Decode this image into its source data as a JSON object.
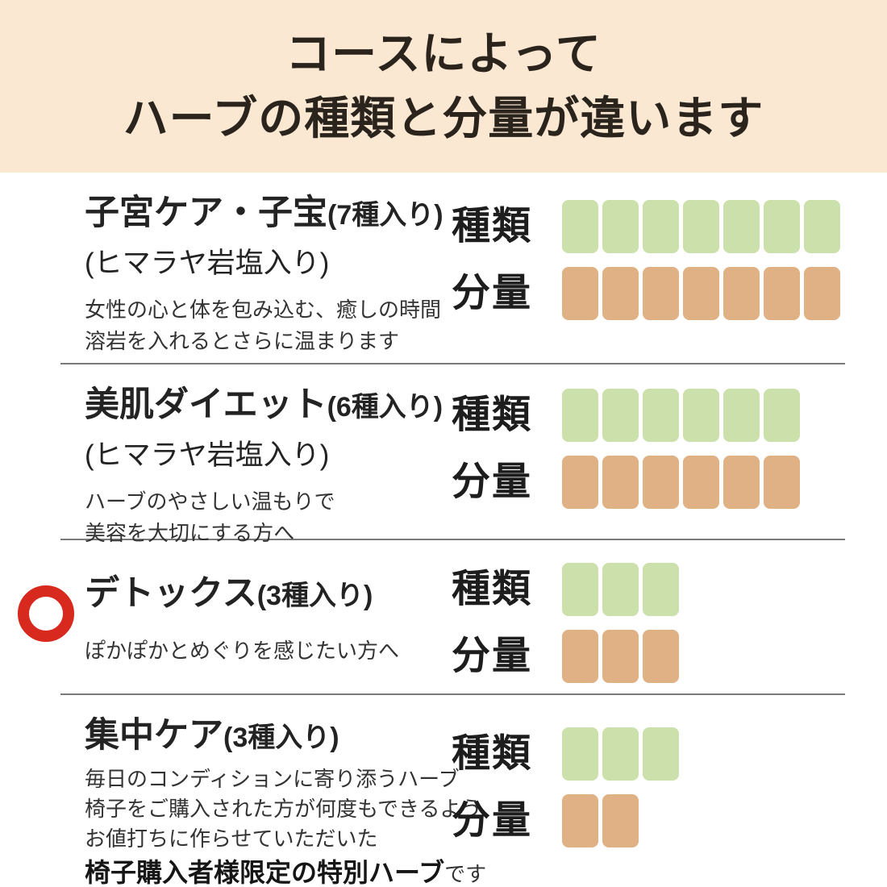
{
  "header": {
    "title_line1": "コースによって",
    "title_line2": "ハーブの種類と分量が違います"
  },
  "labels": {
    "types": "種類",
    "amount": "分量"
  },
  "colors": {
    "header_bg": "#FAE8D3",
    "green_square": "#CBE0AA",
    "orange_square": "#E0B184",
    "marker_red": "#D7291D",
    "divider": "#7A7A7A",
    "ink": "#2B241D"
  },
  "sections": [
    {
      "title": "子宮ケア・子宝",
      "title_suffix": "(7種入り)",
      "subtitle": "(ヒマラヤ岩塩入り)",
      "description_lines": [
        "女性の心と体を包み込む、癒しの時間",
        "溶岩を入れるとさらに温まります"
      ],
      "types_count": 7,
      "amount_count": 7,
      "marked": false
    },
    {
      "title": "美肌ダイエット",
      "title_suffix": "(6種入り)",
      "subtitle": "(ヒマラヤ岩塩入り)",
      "description_lines": [
        "ハーブのやさしい温もりで",
        "美容を大切にする方へ"
      ],
      "types_count": 6,
      "amount_count": 6,
      "marked": false
    },
    {
      "title": "デトックス",
      "title_suffix": "(3種入り)",
      "subtitle": "",
      "description_lines": [
        "ぽかぽかとめぐりを感じたい方へ"
      ],
      "types_count": 3,
      "amount_count": 3,
      "marked": true
    },
    {
      "title": "集中ケア",
      "title_suffix": "(3種入り)",
      "subtitle": "",
      "description_lines": [
        "毎日のコンディションに寄り添うハーブ",
        "椅子をご購入された方が何度もできるよう",
        "お値打ちに作らせていただいた"
      ],
      "emphasis": "椅子購入者様限定の特別ハーブ",
      "emphasis_suffix": "です",
      "types_count": 3,
      "amount_count": 2,
      "marked": false
    }
  ],
  "chart_data": {
    "type": "bar",
    "categories": [
      "子宮ケア・子宝(7種入り)",
      "美肌ダイエット(6種入り)",
      "デトックス(3種入り)",
      "集中ケア(3種入り)"
    ],
    "series": [
      {
        "name": "種類",
        "values": [
          7,
          6,
          3,
          3
        ]
      },
      {
        "name": "分量",
        "values": [
          7,
          6,
          3,
          2
        ]
      }
    ],
    "title": "コースによってハーブの種類と分量が違います",
    "xlabel": "",
    "ylabel": "",
    "ylim": [
      0,
      7
    ],
    "legend_position": "row-labels-left",
    "grid": false,
    "note": "unit-square chart: each rounded square = 1 unit; 種類 squares green, 分量 squares orange; デトックス row marked with red circle"
  }
}
